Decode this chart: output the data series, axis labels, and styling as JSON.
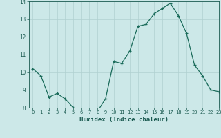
{
  "x": [
    0,
    1,
    2,
    3,
    4,
    5,
    6,
    7,
    8,
    9,
    10,
    11,
    12,
    13,
    14,
    15,
    16,
    17,
    18,
    19,
    20,
    21,
    22,
    23
  ],
  "y": [
    10.2,
    9.8,
    8.6,
    8.8,
    8.5,
    8.0,
    7.8,
    7.8,
    7.8,
    8.5,
    10.6,
    10.5,
    11.2,
    12.6,
    12.7,
    13.3,
    13.6,
    13.9,
    13.2,
    12.2,
    10.4,
    9.8,
    9.0,
    8.9
  ],
  "xlabel": "Humidex (Indice chaleur)",
  "line_color": "#1a6b5a",
  "marker_color": "#1a6b5a",
  "bg_color": "#cce8e8",
  "grid_color": "#b0d0d0",
  "text_color": "#1a5a50",
  "ylim": [
    8,
    14
  ],
  "xlim": [
    -0.5,
    23
  ],
  "yticks": [
    8,
    9,
    10,
    11,
    12,
    13,
    14
  ],
  "xticks": [
    0,
    1,
    2,
    3,
    4,
    5,
    6,
    7,
    8,
    9,
    10,
    11,
    12,
    13,
    14,
    15,
    16,
    17,
    18,
    19,
    20,
    21,
    22,
    23
  ]
}
